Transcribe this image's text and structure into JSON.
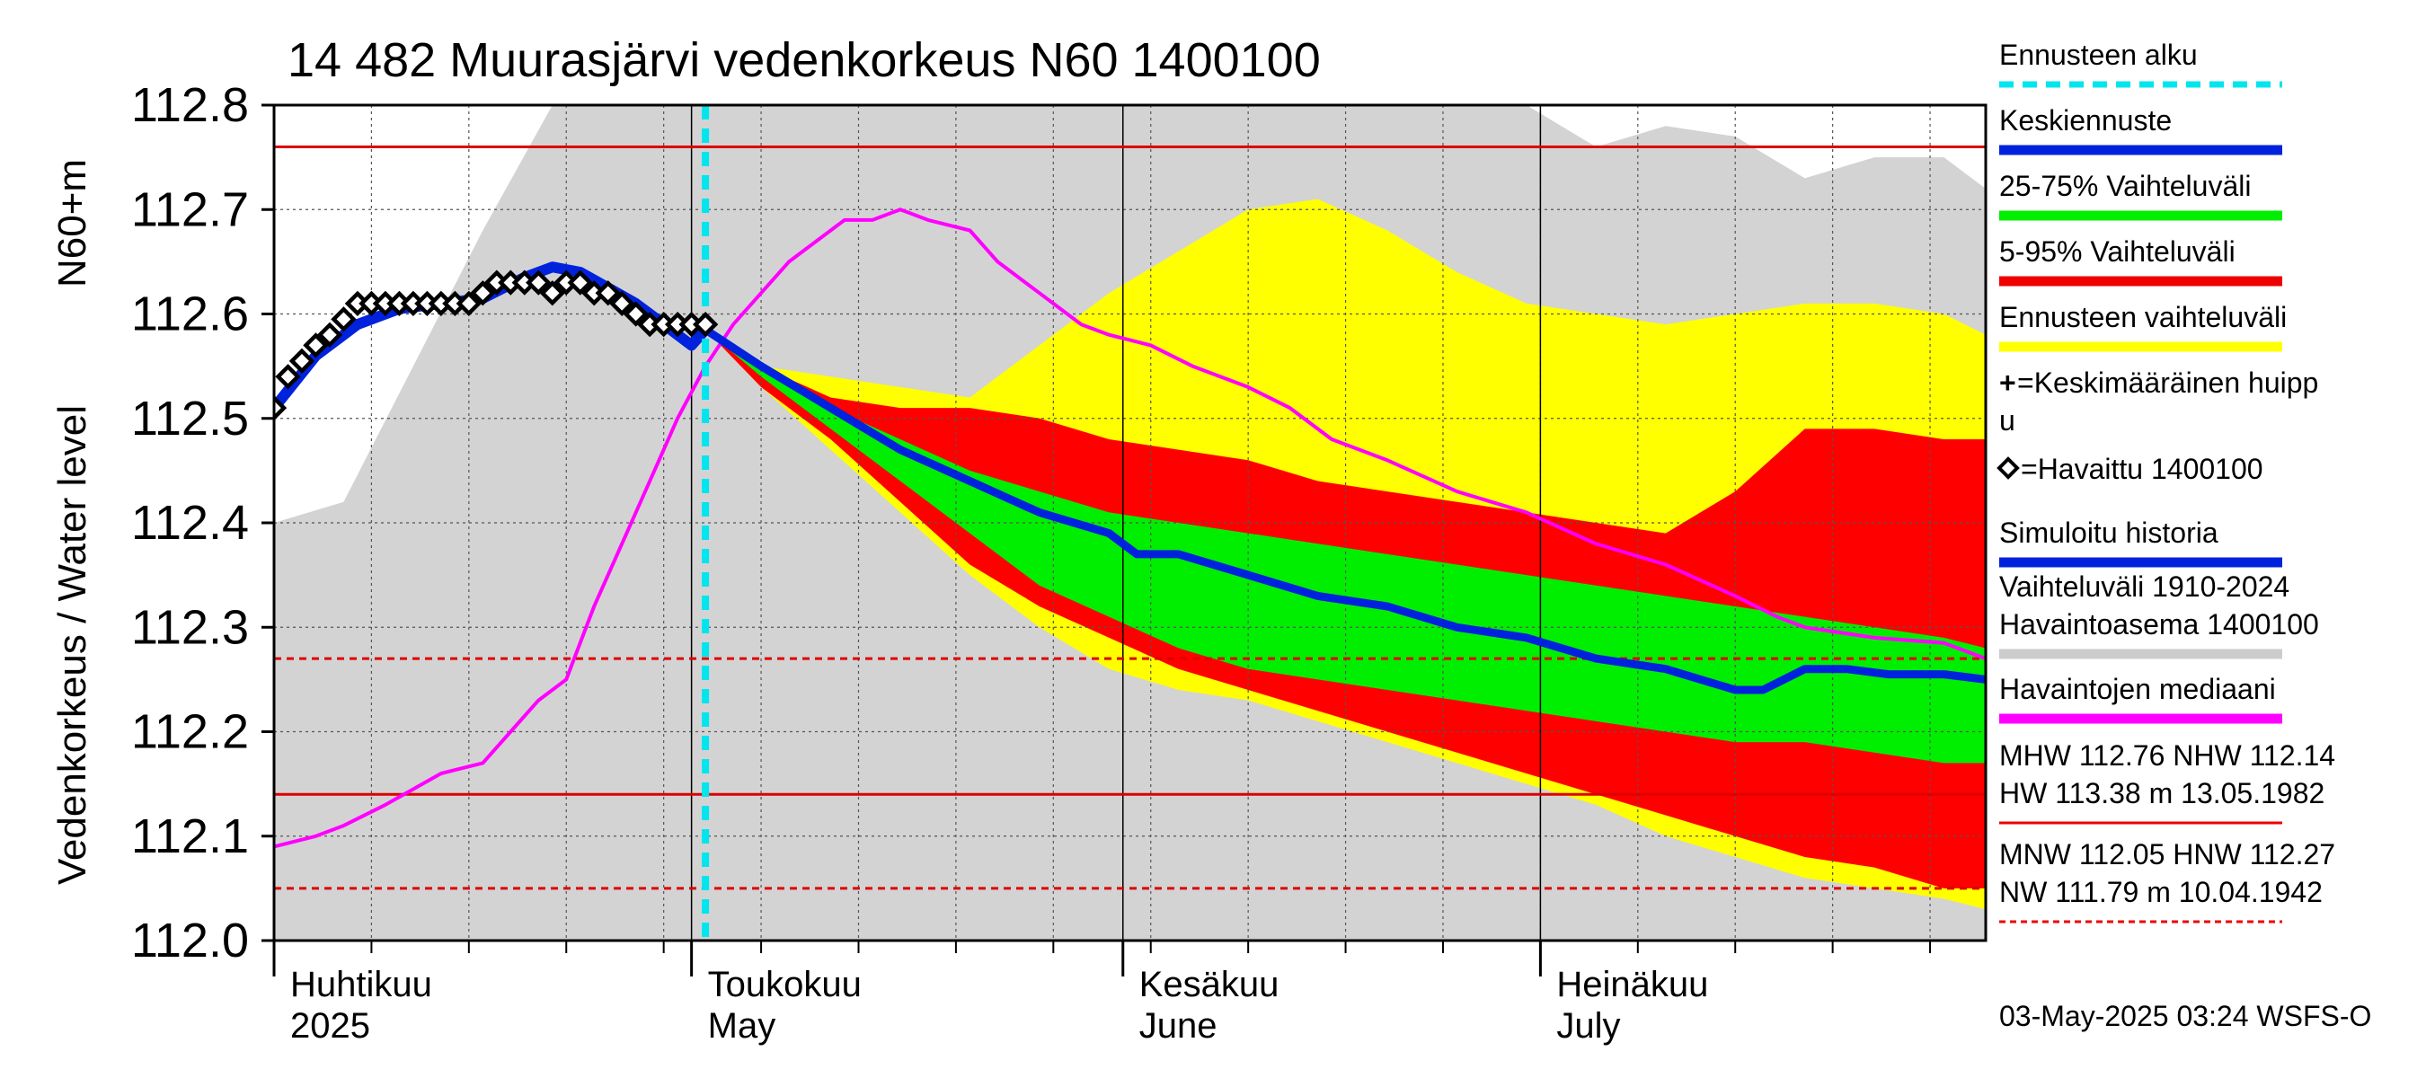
{
  "chart_data": {
    "type": "area",
    "title": "14 482 Muurasjärvi vedenkorkeus N60 1400100",
    "ylabel_fi": "Vedenkorkeus / Water level",
    "ylabel_unit": "N60+m",
    "ylim": [
      112.0,
      112.8
    ],
    "yticks": [
      "112.0",
      "112.1",
      "112.2",
      "112.3",
      "112.4",
      "112.5",
      "112.6",
      "112.7",
      "112.8"
    ],
    "xlim": [
      0,
      123
    ],
    "months": [
      {
        "fi": "Huhtikuu",
        "en": "2025",
        "day": 0
      },
      {
        "fi": "Toukokuu",
        "en": "May",
        "day": 30
      },
      {
        "fi": "Kesäkuu",
        "en": "June",
        "day": 61
      },
      {
        "fi": "Heinäkuu",
        "en": "July",
        "day": 91
      }
    ],
    "forecast_start_day": 31,
    "ref_lines": [
      {
        "name": "MHW",
        "value": 112.76,
        "style": "solid"
      },
      {
        "name": "NHW",
        "value": 112.14,
        "style": "solid"
      },
      {
        "name": "HNW",
        "value": 112.27,
        "style": "dashed"
      },
      {
        "name": "MNW",
        "value": 112.05,
        "style": "dashed"
      }
    ],
    "x": [
      0,
      5,
      10,
      15,
      20,
      25,
      30,
      31,
      35,
      40,
      45,
      50,
      55,
      60,
      65,
      70,
      75,
      80,
      85,
      90,
      95,
      100,
      105,
      110,
      115,
      120,
      123
    ],
    "bands": {
      "history_max": [
        112.4,
        112.42,
        112.55,
        112.68,
        112.8,
        112.8,
        112.8,
        112.8,
        112.8,
        112.8,
        112.8,
        112.8,
        112.8,
        112.8,
        112.8,
        112.8,
        112.8,
        112.8,
        112.8,
        112.8,
        112.76,
        112.78,
        112.77,
        112.73,
        112.75,
        112.75,
        112.72
      ],
      "history_min": [
        112.0,
        112.0,
        112.0,
        112.0,
        112.0,
        112.0,
        112.0,
        112.0,
        112.0,
        112.0,
        112.0,
        112.0,
        112.0,
        112.0,
        112.0,
        112.0,
        112.0,
        112.0,
        112.0,
        112.0,
        112.0,
        112.0,
        112.0,
        112.0,
        112.0,
        112.0,
        112.0
      ],
      "ens_max": [
        null,
        null,
        null,
        null,
        null,
        null,
        null,
        112.585,
        112.55,
        112.54,
        112.53,
        112.52,
        112.57,
        112.62,
        112.66,
        112.7,
        112.71,
        112.68,
        112.64,
        112.61,
        112.6,
        112.59,
        112.6,
        112.61,
        112.61,
        112.6,
        112.58
      ],
      "ens_min": [
        null,
        null,
        null,
        null,
        null,
        null,
        null,
        112.585,
        112.53,
        112.47,
        112.41,
        112.35,
        112.3,
        112.26,
        112.24,
        112.23,
        112.21,
        112.19,
        112.17,
        112.15,
        112.13,
        112.1,
        112.08,
        112.06,
        112.05,
        112.04,
        112.03
      ],
      "p95": [
        null,
        null,
        null,
        null,
        null,
        null,
        null,
        112.585,
        112.55,
        112.52,
        112.51,
        112.51,
        112.5,
        112.48,
        112.47,
        112.46,
        112.44,
        112.43,
        112.42,
        112.41,
        112.4,
        112.39,
        112.43,
        112.49,
        112.49,
        112.48,
        112.48
      ],
      "p05": [
        null,
        null,
        null,
        null,
        null,
        null,
        null,
        112.585,
        112.53,
        112.48,
        112.42,
        112.36,
        112.32,
        112.29,
        112.26,
        112.24,
        112.22,
        112.2,
        112.18,
        112.16,
        112.14,
        112.12,
        112.1,
        112.08,
        112.07,
        112.05,
        112.05
      ],
      "p75": [
        null,
        null,
        null,
        null,
        null,
        null,
        null,
        112.585,
        112.55,
        112.51,
        112.48,
        112.45,
        112.43,
        112.41,
        112.4,
        112.39,
        112.38,
        112.37,
        112.36,
        112.35,
        112.34,
        112.33,
        112.32,
        112.31,
        112.3,
        112.29,
        112.28
      ],
      "p25": [
        null,
        null,
        null,
        null,
        null,
        null,
        null,
        112.585,
        112.54,
        112.49,
        112.44,
        112.39,
        112.34,
        112.31,
        112.28,
        112.26,
        112.25,
        112.24,
        112.23,
        112.22,
        112.21,
        112.2,
        112.19,
        112.19,
        112.18,
        112.17,
        112.17
      ]
    },
    "series": [
      {
        "name": "Keskiennuste",
        "x": [
          31,
          35,
          40,
          45,
          50,
          55,
          60,
          62,
          65,
          70,
          75,
          80,
          85,
          90,
          95,
          100,
          105,
          107,
          110,
          113,
          116,
          120,
          123
        ],
        "values": [
          112.585,
          112.55,
          112.51,
          112.47,
          112.44,
          112.41,
          112.39,
          112.37,
          112.37,
          112.35,
          112.33,
          112.32,
          112.3,
          112.29,
          112.27,
          112.26,
          112.24,
          112.24,
          112.26,
          112.26,
          112.255,
          112.255,
          112.25
        ]
      },
      {
        "name": "Simuloitu historia",
        "x": [
          0,
          3,
          6,
          9,
          12,
          15,
          18,
          20,
          22,
          24,
          26,
          28,
          30,
          31
        ],
        "values": [
          112.51,
          112.56,
          112.59,
          112.605,
          112.61,
          112.615,
          112.635,
          112.645,
          112.64,
          112.625,
          112.61,
          112.59,
          112.57,
          112.585
        ]
      },
      {
        "name": "Havaintojen mediaani",
        "x": [
          0,
          3,
          5,
          8,
          12,
          15,
          17,
          19,
          21,
          23,
          25,
          27,
          29,
          31,
          33,
          35,
          37,
          39,
          41,
          43,
          45,
          47,
          50,
          52,
          55,
          58,
          60,
          63,
          66,
          70,
          73,
          76,
          80,
          85,
          90,
          95,
          100,
          105,
          108,
          110,
          115,
          120,
          123
        ],
        "values": [
          112.09,
          112.1,
          112.11,
          112.13,
          112.16,
          112.17,
          112.2,
          112.23,
          112.25,
          112.32,
          112.38,
          112.44,
          112.5,
          112.55,
          112.59,
          112.62,
          112.65,
          112.67,
          112.69,
          112.69,
          112.7,
          112.69,
          112.68,
          112.65,
          112.62,
          112.59,
          112.58,
          112.57,
          112.55,
          112.53,
          112.51,
          112.48,
          112.46,
          112.43,
          112.41,
          112.38,
          112.36,
          112.33,
          112.31,
          112.3,
          112.29,
          112.285,
          112.27
        ]
      },
      {
        "name": "Havaittu 1400100",
        "x": [
          0,
          1,
          2,
          3,
          4,
          5,
          6,
          7,
          8,
          9,
          10,
          11,
          12,
          13,
          14,
          15,
          16,
          17,
          18,
          19,
          20,
          21,
          22,
          23,
          24,
          25,
          26,
          27,
          28,
          29,
          30,
          31
        ],
        "values": [
          112.51,
          112.54,
          112.555,
          112.57,
          112.58,
          112.595,
          112.61,
          112.61,
          112.61,
          112.61,
          112.61,
          112.61,
          112.61,
          112.61,
          112.61,
          112.62,
          112.63,
          112.63,
          112.63,
          112.63,
          112.62,
          112.63,
          112.63,
          112.62,
          112.62,
          112.61,
          112.6,
          112.59,
          112.59,
          112.59,
          112.59,
          112.59
        ]
      }
    ],
    "legend": [
      {
        "label": "Ennusteen alku",
        "color": "#00e5ee",
        "style": "dashed"
      },
      {
        "label": "Keskiennuste",
        "color": "#0022dd",
        "style": "solid"
      },
      {
        "label": "25-75% Vaihteluväli",
        "color": "#00ee00",
        "style": "solid"
      },
      {
        "label": "5-95% Vaihteluväli",
        "color": "#ee0000",
        "style": "solid"
      },
      {
        "label": "Ennusteen vaihteluväli",
        "color": "#ffff00",
        "style": "solid"
      },
      {
        "label": "=Keskimääräinen huipp",
        "label2": "u",
        "color": "#000000",
        "style": "plus"
      },
      {
        "label": "=Havaittu 1400100",
        "color": "#000000",
        "style": "diamond"
      },
      {
        "label": "Simuloitu historia",
        "color": "#0022dd",
        "style": "solid"
      },
      {
        "label": "Vaihteluväli 1910-2024",
        "label2": " Havaintoasema 1400100",
        "color": "#cccccc",
        "style": "solid"
      },
      {
        "label": "Havaintojen mediaani",
        "color": "#ff00ff",
        "style": "solid"
      },
      {
        "label": "MHW 112.76 NHW 112.14",
        "label2": "HW 113.38 m 13.05.1982",
        "color": "#ee0000",
        "style": "solid"
      },
      {
        "label": "MNW 112.05 HNW 112.27",
        "label2": "NW 111.79 m 10.04.1942",
        "color": "#ee0000",
        "style": "dashed"
      }
    ],
    "footer": "03-May-2025 03:24 WSFS-O",
    "colors": {
      "history": "#d3d3d3",
      "ensemble": "#ffff00",
      "p5_95": "#ff0000",
      "p25_75": "#00ee00",
      "mean": "#0022dd",
      "median": "#ff00ff",
      "forecast_start": "#00e5ee",
      "ref": "#dd0000"
    }
  }
}
